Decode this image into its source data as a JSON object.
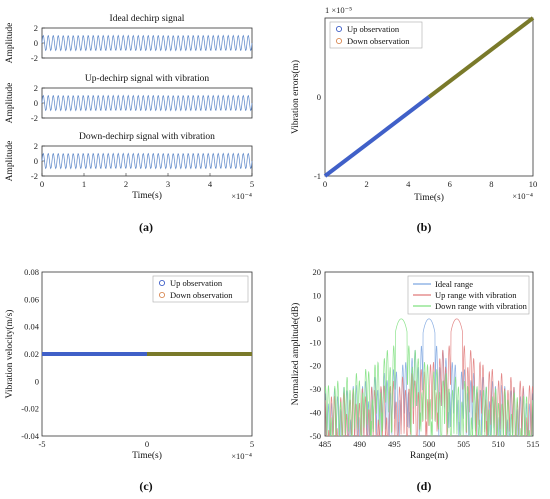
{
  "colors": {
    "blue": "#4060c8",
    "orange": "#d98a55",
    "olive": "#7a7a2a",
    "wave": "#5b86c8",
    "ideal": "#7ea6e0",
    "up": "#e07a7a",
    "down": "#80e080"
  },
  "panel_a": {
    "caption": "(a)",
    "exponent_label": "×10⁻⁴",
    "xlabel": "Time(s)",
    "xticks": [
      "0",
      "1",
      "2",
      "3",
      "4",
      "5"
    ],
    "subplots": [
      {
        "title": "Ideal dechirp signal",
        "ylabel": "Amplitude",
        "yticks": [
          "2",
          "0",
          "-2"
        ]
      },
      {
        "title": "Up-dechirp signal with vibration",
        "ylabel": "Amplitude",
        "yticks": [
          "2",
          "0",
          "-2"
        ]
      },
      {
        "title": "Down-dechirp signal with vibration",
        "ylabel": "Amplitude",
        "yticks": [
          "2",
          "0",
          "-2"
        ]
      }
    ]
  },
  "panel_b": {
    "caption": "(b)",
    "y_exponent_label": "1 ×10⁻⁵",
    "x_exponent_label": "×10⁻⁴",
    "xlabel": "Time(s)",
    "ylabel": "Vibration errors(m)",
    "xticks": [
      "0",
      "2",
      "4",
      "6",
      "8",
      "10"
    ],
    "yticks": [
      "0",
      "-1"
    ],
    "legend": [
      "Up observation",
      "Down observation"
    ]
  },
  "panel_c": {
    "caption": "(c)",
    "x_exponent_label": "×10⁻⁴",
    "xlabel": "Time(s)",
    "ylabel": "Vibration velocity(m/s)",
    "xticks": [
      "-5",
      "0",
      "5"
    ],
    "yticks": [
      "0.08",
      "0.06",
      "0.04",
      "0.02",
      "0",
      "-0.02",
      "-0.04"
    ],
    "legend": [
      "Up observation",
      "Down observation"
    ]
  },
  "panel_d": {
    "caption": "(d)",
    "xlabel": "Range(m)",
    "ylabel": "Normalized amplitude(dB)",
    "xticks": [
      "485",
      "490",
      "495",
      "500",
      "505",
      "510",
      "515"
    ],
    "yticks": [
      "20",
      "10",
      "0",
      "-10",
      "-20",
      "-30",
      "-40",
      "-50"
    ],
    "legend": [
      "Ideal range",
      "Up range with vibration",
      "Down range with vibration"
    ]
  },
  "chart_data": [
    {
      "type": "line",
      "panel": "a1",
      "title": "Ideal dechirp signal",
      "xlabel": "Time(s)",
      "ylabel": "Amplitude",
      "xlim": [
        0,
        0.0005
      ],
      "ylim": [
        -2,
        2
      ],
      "series": [
        {
          "description": "sinusoid amplitude 1"
        }
      ]
    },
    {
      "type": "line",
      "panel": "a2",
      "title": "Up-dechirp signal with vibration",
      "xlabel": "Time(s)",
      "ylabel": "Amplitude",
      "xlim": [
        0,
        0.0005
      ],
      "ylim": [
        -2,
        2
      ]
    },
    {
      "type": "line",
      "panel": "a3",
      "title": "Down-dechirp signal with vibration",
      "xlabel": "Time(s)",
      "ylabel": "Amplitude",
      "xlim": [
        0,
        0.0005
      ],
      "ylim": [
        -2,
        2
      ]
    },
    {
      "type": "scatter",
      "panel": "b",
      "xlabel": "Time(s)",
      "ylabel": "Vibration errors(m)",
      "xlim": [
        0,
        0.001
      ],
      "ylim": [
        -1e-05,
        1e-05
      ],
      "series": [
        {
          "name": "Up observation",
          "x": [
            0,
            0.0005
          ],
          "y": [
            -1e-05,
            0
          ]
        },
        {
          "name": "Down observation",
          "x": [
            0.0005,
            0.001
          ],
          "y": [
            0,
            1e-05
          ]
        }
      ]
    },
    {
      "type": "scatter",
      "panel": "c",
      "xlabel": "Time(s)",
      "ylabel": "Vibration velocity(m/s)",
      "xlim": [
        -0.0005,
        0.0005
      ],
      "ylim": [
        -0.04,
        0.08
      ],
      "series": [
        {
          "name": "Up observation",
          "x": [
            -0.0005,
            0
          ],
          "y": [
            0.02,
            0.02
          ]
        },
        {
          "name": "Down observation",
          "x": [
            0,
            0.0005
          ],
          "y": [
            0.02,
            0.02
          ]
        }
      ]
    },
    {
      "type": "line",
      "panel": "d",
      "xlabel": "Range(m)",
      "ylabel": "Normalized amplitude(dB)",
      "xlim": [
        485,
        515
      ],
      "ylim": [
        -50,
        20
      ],
      "series": [
        {
          "name": "Ideal range",
          "peak_x": 500,
          "peak_y": 0
        },
        {
          "name": "Up range with vibration",
          "peak_x": 504,
          "peak_y": 0
        },
        {
          "name": "Down range with vibration",
          "peak_x": 496,
          "peak_y": 0
        }
      ]
    }
  ]
}
